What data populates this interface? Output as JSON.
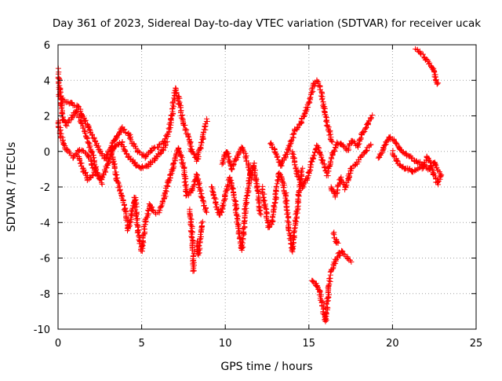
{
  "chart_data": {
    "type": "scatter",
    "title": "Day 361 of 2023, Sidereal Day-to-day VTEC variation (SDTVAR) for receiver ucak",
    "xlabel": "GPS time / hours",
    "ylabel": "SDTVAR / TECUs",
    "xlim": [
      0,
      25
    ],
    "ylim": [
      -10,
      6
    ],
    "x_ticks": [
      "0",
      "5",
      "10",
      "15",
      "20",
      "25"
    ],
    "y_ticks": [
      "-10",
      "-8",
      "-6",
      "-4",
      "-2",
      "0",
      "2",
      "4",
      "6"
    ],
    "grid": true,
    "marker": "+",
    "series": [
      {
        "name": "SDTVAR",
        "color": "#ff0000",
        "tracks": [
          [
            [
              0.0,
              3.2
            ],
            [
              0.3,
              2.9
            ],
            [
              0.8,
              2.7
            ],
            [
              1.2,
              2.5
            ],
            [
              1.6,
              1.8
            ],
            [
              2.0,
              1.0
            ],
            [
              2.5,
              0.0
            ],
            [
              2.8,
              -0.4
            ],
            [
              3.2,
              0.3
            ],
            [
              3.5,
              0.8
            ],
            [
              3.8,
              1.3
            ],
            [
              4.2,
              1.0
            ],
            [
              4.5,
              0.4
            ],
            [
              4.8,
              0.0
            ],
            [
              5.2,
              -0.3
            ],
            [
              5.6,
              0.1
            ],
            [
              6.0,
              0.3
            ],
            [
              6.3,
              0.5
            ],
            [
              6.6,
              1.0
            ],
            [
              6.8,
              2.0
            ],
            [
              7.0,
              3.5
            ],
            [
              7.2,
              3.0
            ],
            [
              7.5,
              1.6
            ],
            [
              7.8,
              0.8
            ],
            [
              8.0,
              0.0
            ],
            [
              8.3,
              -0.5
            ],
            [
              8.6,
              0.5
            ],
            [
              8.9,
              1.8
            ]
          ],
          [
            [
              0.0,
              1.8
            ],
            [
              0.2,
              0.8
            ],
            [
              0.5,
              0.1
            ],
            [
              0.9,
              -0.3
            ],
            [
              1.3,
              0.1
            ],
            [
              1.8,
              -0.2
            ],
            [
              2.2,
              -1.2
            ],
            [
              2.6,
              -1.6
            ],
            [
              3.0,
              -0.6
            ],
            [
              3.4,
              0.3
            ],
            [
              3.8,
              0.5
            ],
            [
              4.2,
              -0.3
            ],
            [
              4.6,
              -0.7
            ],
            [
              5.0,
              -0.9
            ],
            [
              5.4,
              -0.8
            ],
            [
              5.8,
              -0.4
            ],
            [
              6.2,
              0.0
            ],
            [
              6.5,
              0.5
            ]
          ],
          [
            [
              0.0,
              4.6
            ],
            [
              0.1,
              3.4
            ],
            [
              0.2,
              2.6
            ],
            [
              0.3,
              1.8
            ],
            [
              0.5,
              1.5
            ],
            [
              0.8,
              1.9
            ],
            [
              1.1,
              2.3
            ],
            [
              1.4,
              1.6
            ],
            [
              1.7,
              0.8
            ],
            [
              2.0,
              0.0
            ],
            [
              2.3,
              -1.0
            ],
            [
              2.6,
              -1.8
            ]
          ],
          [
            [
              1.2,
              -0.2
            ],
            [
              1.5,
              -1.0
            ],
            [
              1.8,
              -1.6
            ],
            [
              2.1,
              -1.3
            ]
          ],
          [
            [
              3.2,
              0.0
            ],
            [
              3.5,
              -1.5
            ],
            [
              3.8,
              -2.5
            ],
            [
              4.0,
              -3.2
            ],
            [
              4.2,
              -4.4
            ],
            [
              4.4,
              -3.5
            ],
            [
              4.6,
              -2.6
            ],
            [
              4.8,
              -4.6
            ],
            [
              5.0,
              -5.6
            ],
            [
              5.2,
              -4.0
            ],
            [
              5.5,
              -3.0
            ],
            [
              5.8,
              -3.5
            ]
          ],
          [
            [
              6.0,
              -3.5
            ],
            [
              6.3,
              -2.8
            ],
            [
              6.6,
              -1.7
            ],
            [
              6.9,
              -0.8
            ],
            [
              7.2,
              0.2
            ],
            [
              7.5,
              -0.8
            ],
            [
              7.7,
              -2.5
            ],
            [
              8.0,
              -2.2
            ],
            [
              8.3,
              -1.3
            ],
            [
              8.6,
              -2.6
            ],
            [
              8.9,
              -3.4
            ]
          ],
          [
            [
              7.9,
              -3.3
            ],
            [
              8.0,
              -4.6
            ],
            [
              8.1,
              -5.8
            ],
            [
              8.1,
              -6.8
            ]
          ],
          [
            [
              8.3,
              -5.1
            ],
            [
              8.4,
              -5.8
            ],
            [
              8.6,
              -4.0
            ]
          ],
          [
            [
              9.2,
              -2.0
            ],
            [
              9.5,
              -3.2
            ],
            [
              9.7,
              -3.6
            ],
            [
              10.0,
              -2.5
            ],
            [
              10.3,
              -1.5
            ],
            [
              10.6,
              -2.8
            ],
            [
              10.8,
              -4.5
            ],
            [
              11.0,
              -5.5
            ],
            [
              11.2,
              -3.2
            ],
            [
              11.5,
              -1.2
            ],
            [
              11.7,
              -0.7
            ],
            [
              11.9,
              -2.0
            ],
            [
              12.1,
              -3.5
            ]
          ],
          [
            [
              9.8,
              -0.7
            ],
            [
              10.1,
              0.0
            ],
            [
              10.4,
              -1.0
            ],
            [
              10.7,
              -0.3
            ],
            [
              11.0,
              0.2
            ],
            [
              11.3,
              -0.5
            ],
            [
              11.6,
              -1.5
            ]
          ],
          [
            [
              12.2,
              -2.0
            ],
            [
              12.4,
              -3.2
            ],
            [
              12.6,
              -4.3
            ],
            [
              12.8,
              -4.0
            ],
            [
              13.0,
              -2.6
            ],
            [
              13.2,
              -1.2
            ],
            [
              13.4,
              -1.6
            ],
            [
              13.6,
              -2.4
            ],
            [
              13.8,
              -4.3
            ],
            [
              14.0,
              -5.6
            ],
            [
              14.2,
              -4.0
            ],
            [
              14.4,
              -2.5
            ],
            [
              14.6,
              -1.0
            ]
          ],
          [
            [
              12.7,
              0.5
            ],
            [
              13.0,
              0.0
            ],
            [
              13.3,
              -0.8
            ],
            [
              13.6,
              -0.3
            ],
            [
              13.9,
              0.5
            ],
            [
              14.2,
              1.2
            ],
            [
              14.5,
              1.6
            ],
            [
              14.8,
              2.2
            ],
            [
              15.1,
              3.0
            ],
            [
              15.3,
              3.8
            ],
            [
              15.5,
              4.0
            ],
            [
              15.7,
              3.5
            ],
            [
              15.9,
              2.5
            ],
            [
              16.1,
              1.5
            ],
            [
              16.4,
              0.5
            ]
          ],
          [
            [
              14.0,
              0.0
            ],
            [
              14.3,
              -1.2
            ],
            [
              14.6,
              -2.0
            ],
            [
              14.9,
              -1.5
            ],
            [
              15.2,
              -0.5
            ],
            [
              15.5,
              0.3
            ],
            [
              15.8,
              -0.5
            ],
            [
              16.1,
              -1.3
            ],
            [
              16.4,
              -0.2
            ],
            [
              16.7,
              0.5
            ],
            [
              17.0,
              0.4
            ],
            [
              17.3,
              0.1
            ],
            [
              17.6,
              0.6
            ],
            [
              17.9,
              0.3
            ],
            [
              18.2,
              1.0
            ],
            [
              18.5,
              1.5
            ],
            [
              18.8,
              2.0
            ]
          ],
          [
            [
              16.3,
              -2.0
            ],
            [
              16.6,
              -2.5
            ],
            [
              16.9,
              -1.5
            ],
            [
              17.2,
              -2.1
            ],
            [
              17.5,
              -1.0
            ],
            [
              17.8,
              -0.7
            ],
            [
              18.1,
              -0.3
            ],
            [
              18.4,
              0.0
            ],
            [
              18.7,
              0.4
            ]
          ],
          [
            [
              15.2,
              -7.2
            ],
            [
              15.4,
              -7.5
            ],
            [
              15.6,
              -7.8
            ],
            [
              15.8,
              -8.5
            ],
            [
              15.9,
              -9.2
            ],
            [
              16.0,
              -9.6
            ],
            [
              16.1,
              -8.5
            ],
            [
              16.2,
              -7.6
            ],
            [
              16.3,
              -7.0
            ]
          ],
          [
            [
              16.3,
              -6.8
            ],
            [
              16.5,
              -6.3
            ],
            [
              16.8,
              -5.8
            ],
            [
              17.0,
              -5.6
            ],
            [
              17.3,
              -6.0
            ],
            [
              17.5,
              -6.2
            ]
          ],
          [
            [
              16.5,
              -4.6
            ],
            [
              16.6,
              -5.0
            ],
            [
              16.7,
              -5.2
            ]
          ],
          [
            [
              19.2,
              -0.4
            ],
            [
              19.5,
              0.3
            ],
            [
              19.8,
              0.8
            ],
            [
              20.1,
              0.6
            ],
            [
              20.4,
              0.2
            ],
            [
              20.7,
              -0.1
            ],
            [
              21.0,
              -0.3
            ],
            [
              21.3,
              -0.5
            ],
            [
              21.6,
              -0.6
            ],
            [
              21.9,
              -0.8
            ],
            [
              22.2,
              -1.0
            ],
            [
              22.5,
              -0.6
            ],
            [
              22.8,
              -1.2
            ]
          ],
          [
            [
              20.0,
              0.0
            ],
            [
              20.3,
              -0.6
            ],
            [
              20.6,
              -0.9
            ],
            [
              20.9,
              -1.0
            ],
            [
              21.2,
              -1.1
            ],
            [
              21.5,
              -1.0
            ],
            [
              21.8,
              -0.9
            ],
            [
              22.1,
              -0.3
            ],
            [
              22.4,
              -1.2
            ],
            [
              22.7,
              -1.8
            ],
            [
              22.9,
              -1.3
            ]
          ],
          [
            [
              21.4,
              5.8
            ],
            [
              21.7,
              5.5
            ],
            [
              22.0,
              5.2
            ],
            [
              22.3,
              4.8
            ],
            [
              22.5,
              4.5
            ],
            [
              22.6,
              4.0
            ],
            [
              22.7,
              3.8
            ]
          ]
        ]
      }
    ]
  }
}
